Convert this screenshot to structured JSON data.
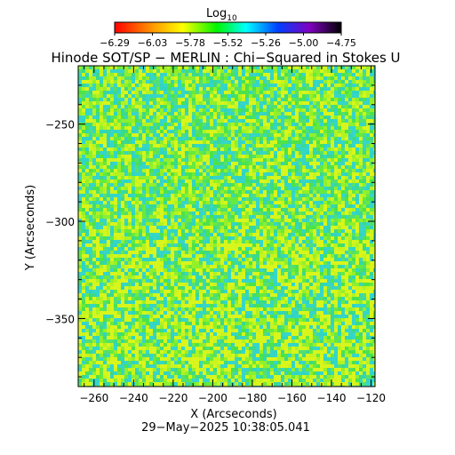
{
  "chart_data": {
    "type": "heatmap",
    "title": "Hinode SOT/SP − MERLIN : Chi−Squared in Stokes U",
    "colorbar": {
      "label_main": "Log",
      "label_sub": "10",
      "ticks": [
        "−6.29",
        "−6.03",
        "−5.78",
        "−5.52",
        "−5.26",
        "−5.00",
        "−4.75"
      ],
      "range": [
        -6.29,
        -4.75
      ]
    },
    "x_axis": {
      "label": "X (Arcseconds)",
      "range": [
        -268,
        -118
      ],
      "ticks": [
        {
          "value": -260,
          "label": "−260"
        },
        {
          "value": -240,
          "label": "−240"
        },
        {
          "value": -220,
          "label": "−220"
        },
        {
          "value": -200,
          "label": "−200"
        },
        {
          "value": -180,
          "label": "−180"
        },
        {
          "value": -160,
          "label": "−160"
        },
        {
          "value": -140,
          "label": "−140"
        },
        {
          "value": -120,
          "label": "−120"
        }
      ]
    },
    "y_axis": {
      "label": "Y (Arcseconds)",
      "range": [
        -385,
        -220
      ],
      "ticks": [
        {
          "value": -250,
          "label": "−250"
        },
        {
          "value": -300,
          "label": "−300"
        },
        {
          "value": -350,
          "label": "−350"
        }
      ]
    },
    "field_summary": {
      "dominant_color": "green",
      "mean_log10_chi2": -5.6,
      "min_log10_chi2": -6.05,
      "max_log10_chi2": -5.2
    },
    "timestamp": "29−May−2025 10:38:05.041"
  }
}
